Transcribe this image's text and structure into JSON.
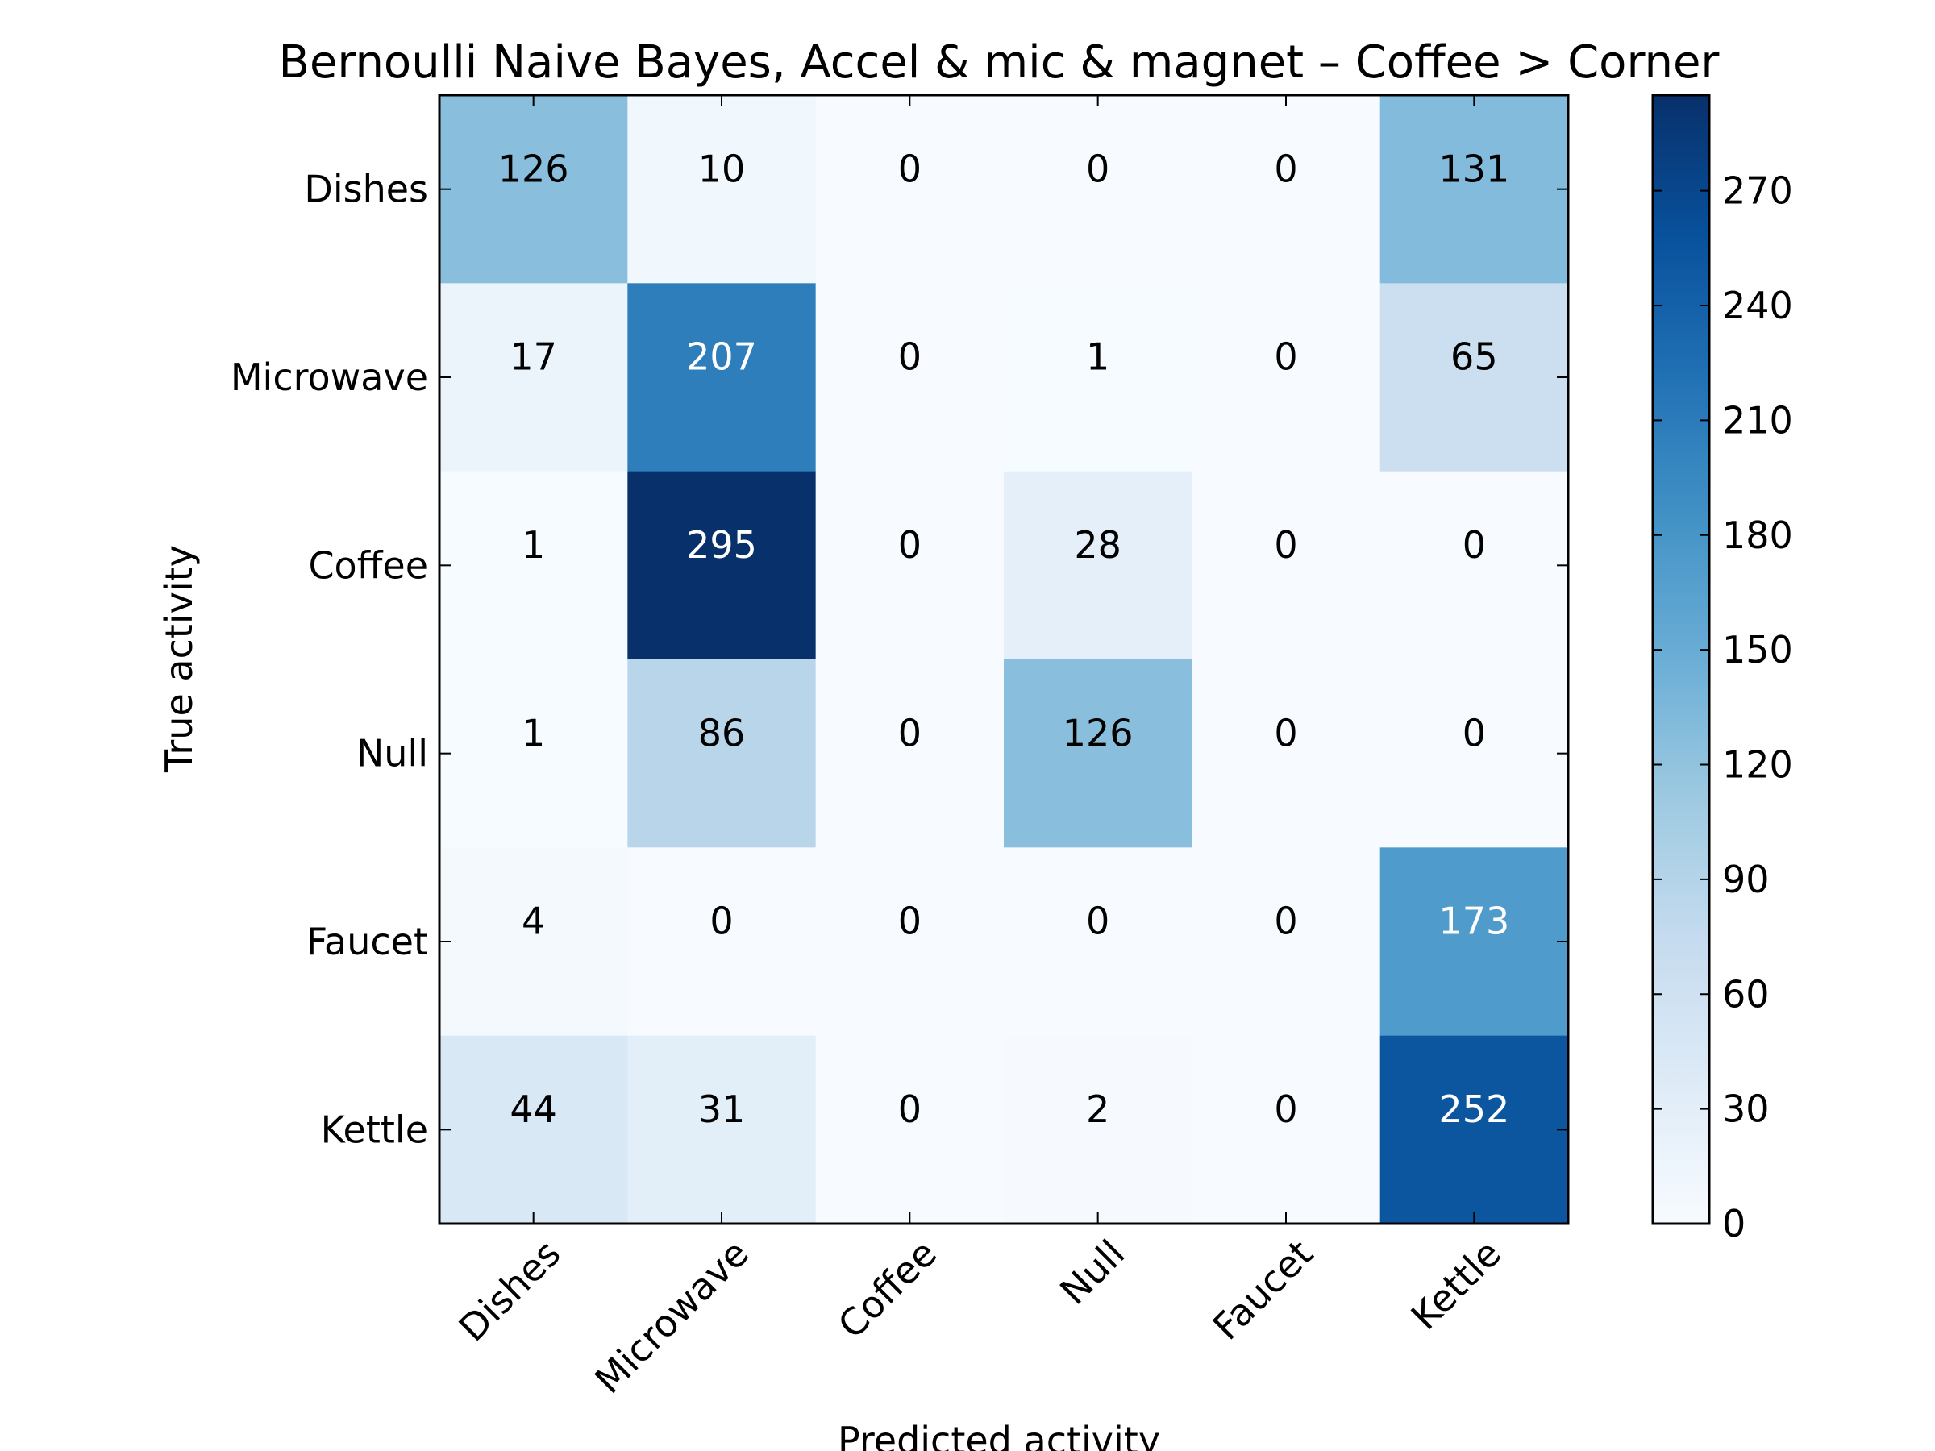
{
  "chart_data": {
    "type": "heatmap",
    "title": "Bernoulli Naive Bayes, Accel & mic & magnet – Coffee > Corner",
    "xlabel": "Predicted activity",
    "ylabel": "True activity",
    "x_categories": [
      "Dishes",
      "Microwave",
      "Coffee",
      "Null",
      "Faucet",
      "Kettle"
    ],
    "y_categories": [
      "Dishes",
      "Microwave",
      "Coffee",
      "Null",
      "Faucet",
      "Kettle"
    ],
    "values": [
      [
        126,
        10,
        0,
        0,
        0,
        131
      ],
      [
        17,
        207,
        0,
        1,
        0,
        65
      ],
      [
        1,
        295,
        0,
        28,
        0,
        0
      ],
      [
        1,
        86,
        0,
        126,
        0,
        0
      ],
      [
        4,
        0,
        0,
        0,
        0,
        173
      ],
      [
        44,
        31,
        0,
        2,
        0,
        252
      ]
    ],
    "colormap": "Blues",
    "color_range": [
      0,
      295
    ],
    "colorbar_ticks": [
      0,
      30,
      60,
      90,
      120,
      150,
      180,
      210,
      240,
      270
    ],
    "x_tick_rotation_deg": 45,
    "grid": false
  }
}
